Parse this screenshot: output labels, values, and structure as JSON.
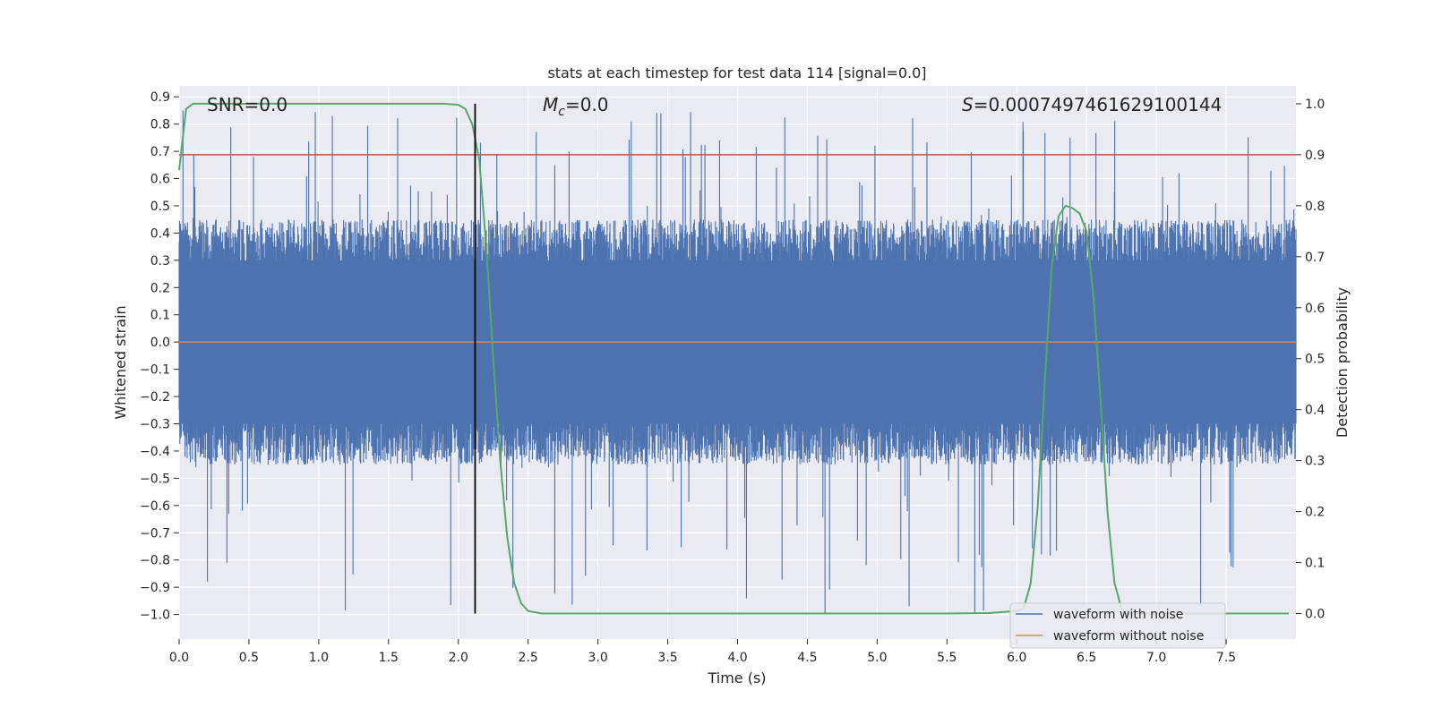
{
  "chart_data": {
    "type": "line",
    "title": "stats at each timestep for test data 114 [signal=0.0]",
    "xlabel": "Time (s)",
    "ylabel": "Whitened strain",
    "y2label": "Detection probability",
    "xlim": [
      0.0,
      8.0
    ],
    "ylim": [
      -1.09,
      0.94
    ],
    "y2lim": [
      -0.05,
      1.035
    ],
    "xticks": [
      "0.0",
      "0.5",
      "1.0",
      "1.5",
      "2.0",
      "2.5",
      "3.0",
      "3.5",
      "4.0",
      "4.5",
      "5.0",
      "5.5",
      "6.0",
      "6.5",
      "7.0",
      "7.5"
    ],
    "xtick_values": [
      0.0,
      0.5,
      1.0,
      1.5,
      2.0,
      2.5,
      3.0,
      3.5,
      4.0,
      4.5,
      5.0,
      5.5,
      6.0,
      6.5,
      7.0,
      7.5
    ],
    "yticks": [
      "0.9",
      "0.8",
      "0.7",
      "0.6",
      "0.5",
      "0.4",
      "0.3",
      "0.2",
      "0.1",
      "0.0",
      "−0.1",
      "−0.2",
      "−0.3",
      "−0.4",
      "−0.5",
      "−0.6",
      "−0.7",
      "−0.8",
      "−0.9",
      "−1.0"
    ],
    "ytick_values": [
      0.9,
      0.8,
      0.7,
      0.6,
      0.5,
      0.4,
      0.3,
      0.2,
      0.1,
      0.0,
      -0.1,
      -0.2,
      -0.3,
      -0.4,
      -0.5,
      -0.6,
      -0.7,
      -0.8,
      -0.9,
      -1.0
    ],
    "y2ticks": [
      "1.0",
      "0.9",
      "0.8",
      "0.7",
      "0.6",
      "0.5",
      "0.4",
      "0.3",
      "0.2",
      "0.1",
      "0.0"
    ],
    "y2tick_values": [
      1.0,
      0.9,
      0.8,
      0.7,
      0.6,
      0.5,
      0.4,
      0.3,
      0.2,
      0.1,
      0.0
    ],
    "annotations": {
      "snr": "SNR=0.0",
      "mc_symbol": "M",
      "mc_subscript": "c",
      "mc_value": "=0.0",
      "s_symbol": "S",
      "s_value": "=0.0007497461629100144"
    },
    "series": [
      {
        "name": "waveform with noise",
        "color": "#4c72b0",
        "noise_envelope": {
          "typical_max": 0.45,
          "typical_min": -0.45,
          "peak_max": 0.85,
          "peak_min": -1.0
        }
      },
      {
        "name": "waveform without noise",
        "color": "#dd8452",
        "x": [
          0.0,
          8.0
        ],
        "values": [
          0.0,
          0.0
        ]
      },
      {
        "color": "#55a868",
        "axis": "right",
        "x": [
          0.0,
          0.05,
          0.1,
          0.2,
          0.5,
          1.0,
          1.5,
          1.8,
          1.9,
          2.0,
          2.05,
          2.1,
          2.15,
          2.2,
          2.25,
          2.3,
          2.35,
          2.4,
          2.45,
          2.5,
          2.6,
          3.0,
          4.0,
          5.0,
          5.5,
          5.8,
          6.0,
          6.05,
          6.1,
          6.15,
          6.2,
          6.25,
          6.3,
          6.35,
          6.4,
          6.45,
          6.5,
          6.55,
          6.6,
          6.65,
          6.7,
          6.75,
          6.8,
          7.0,
          7.5,
          7.95
        ],
        "values": [
          0.87,
          0.99,
          1.0,
          1.0,
          1.0,
          1.0,
          1.0,
          1.0,
          1.0,
          0.998,
          0.99,
          0.96,
          0.89,
          0.72,
          0.5,
          0.3,
          0.15,
          0.06,
          0.02,
          0.005,
          0.0,
          0.0,
          0.0,
          0.0,
          0.0,
          0.001,
          0.005,
          0.01,
          0.06,
          0.21,
          0.45,
          0.68,
          0.78,
          0.8,
          0.795,
          0.785,
          0.75,
          0.62,
          0.42,
          0.2,
          0.06,
          0.01,
          0.0,
          0.0,
          0.0,
          0.0
        ]
      }
    ],
    "threshold": {
      "color": "#c44e52",
      "value": 0.9,
      "axis": "right"
    },
    "marker_line": {
      "color": "#000000",
      "x": 2.12,
      "y_from": 0.0,
      "y_to": 1.0,
      "axis": "right"
    },
    "legend": {
      "placement": "lower-right",
      "entries": [
        {
          "label": "waveform with noise",
          "color": "#4c72b0"
        },
        {
          "label": "waveform without noise",
          "color": "#dd8452"
        }
      ]
    },
    "grid": true,
    "background": "#eaeaf2"
  }
}
